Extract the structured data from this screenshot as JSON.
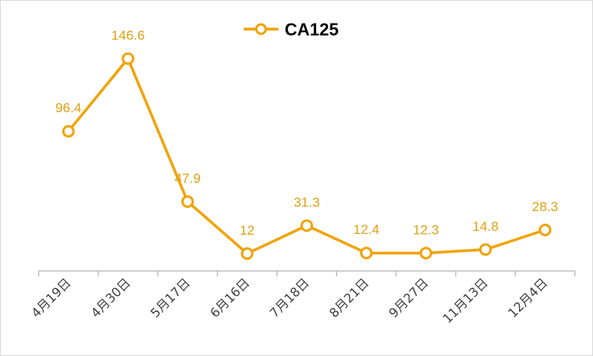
{
  "chart_data": {
    "type": "line",
    "title": "",
    "xlabel": "",
    "ylabel": "",
    "categories": [
      "4月19日",
      "4月30日",
      "5月17日",
      "6月16日",
      "7月18日",
      "8月21日",
      "9月27日",
      "11月13日",
      "12月4日"
    ],
    "series": [
      {
        "name": "CA125",
        "values": [
          96.4,
          146.6,
          47.9,
          12,
          31.3,
          12.4,
          12.3,
          14.8,
          28.3
        ],
        "labels": [
          "96.4",
          "146.6",
          "47.9",
          "12",
          "31.3",
          "12.4",
          "12.3",
          "14.8",
          "28.3"
        ]
      }
    ],
    "ylim": [
      0,
      180
    ],
    "grid": false,
    "legend_position": "top-center",
    "data_labels": true,
    "colors": {
      "line": "#F0A30A",
      "marker_fill": "#FFFFFF",
      "label": "#E0A014",
      "axis": "#BFBFBF"
    }
  }
}
